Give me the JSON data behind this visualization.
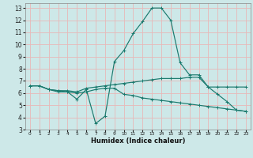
{
  "xlabel": "Humidex (Indice chaleur)",
  "xlim": [
    -0.5,
    23.5
  ],
  "ylim": [
    3,
    13.4
  ],
  "xticks": [
    0,
    1,
    2,
    3,
    4,
    5,
    6,
    7,
    8,
    9,
    10,
    11,
    12,
    13,
    14,
    15,
    16,
    17,
    18,
    19,
    20,
    21,
    22,
    23
  ],
  "yticks": [
    3,
    4,
    5,
    6,
    7,
    8,
    9,
    10,
    11,
    12,
    13
  ],
  "bg_color": "#cde8e8",
  "grid_color": "#e8b8b8",
  "line_color": "#1a7a6e",
  "lines": [
    {
      "x": [
        0,
        1,
        2,
        3,
        4,
        5,
        6,
        7,
        8,
        9,
        10,
        11,
        12,
        13,
        14,
        15,
        16,
        17,
        18,
        19,
        20,
        21,
        22,
        23
      ],
      "y": [
        6.6,
        6.6,
        6.3,
        6.1,
        6.1,
        5.5,
        6.3,
        3.5,
        4.1,
        8.6,
        9.5,
        10.9,
        11.9,
        13.0,
        13.0,
        12.0,
        8.5,
        7.5,
        7.5,
        6.5,
        5.9,
        5.3,
        4.6,
        4.5
      ]
    },
    {
      "x": [
        0,
        1,
        2,
        3,
        4,
        5,
        6,
        7,
        8,
        9,
        10,
        11,
        12,
        13,
        14,
        15,
        16,
        17,
        18,
        19,
        20,
        21,
        22,
        23
      ],
      "y": [
        6.6,
        6.6,
        6.3,
        6.2,
        6.2,
        6.1,
        6.4,
        6.5,
        6.6,
        6.7,
        6.8,
        6.9,
        7.0,
        7.1,
        7.2,
        7.2,
        7.2,
        7.3,
        7.3,
        6.5,
        6.5,
        6.5,
        6.5,
        6.5
      ]
    },
    {
      "x": [
        0,
        1,
        2,
        3,
        4,
        5,
        6,
        7,
        8,
        9,
        10,
        11,
        12,
        13,
        14,
        15,
        16,
        17,
        18,
        19,
        20,
        21,
        22,
        23
      ],
      "y": [
        6.6,
        6.6,
        6.3,
        6.2,
        6.1,
        6.0,
        6.1,
        6.3,
        6.4,
        6.4,
        5.9,
        5.8,
        5.6,
        5.5,
        5.4,
        5.3,
        5.2,
        5.1,
        5.0,
        4.9,
        4.8,
        4.7,
        4.6,
        4.5
      ]
    }
  ]
}
